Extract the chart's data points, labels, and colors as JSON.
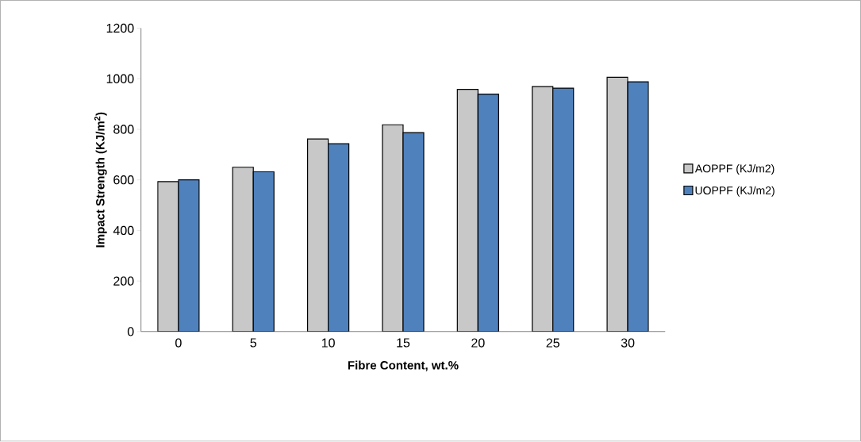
{
  "chart_data": {
    "type": "bar",
    "xlabel": "Fibre Content, wt.%",
    "ylabel": "Impact Strength (KJ/m$^{2}$)",
    "categories": [
      "0",
      "5",
      "10",
      "15",
      "20",
      "25",
      "30"
    ],
    "series": [
      {
        "name": "AOPPF (KJ/m2)",
        "color": "#c8c8c8",
        "values": [
          593,
          650,
          762,
          818,
          958,
          969,
          1006
        ]
      },
      {
        "name": "UOPPF (KJ/m2)",
        "color": "#4f81bd",
        "values": [
          600,
          632,
          743,
          787,
          939,
          963,
          988
        ]
      }
    ],
    "ylim": [
      0,
      1200
    ],
    "yticks": [
      0,
      200,
      400,
      600,
      800,
      1000,
      1200
    ],
    "grid": false,
    "legend": "right"
  }
}
